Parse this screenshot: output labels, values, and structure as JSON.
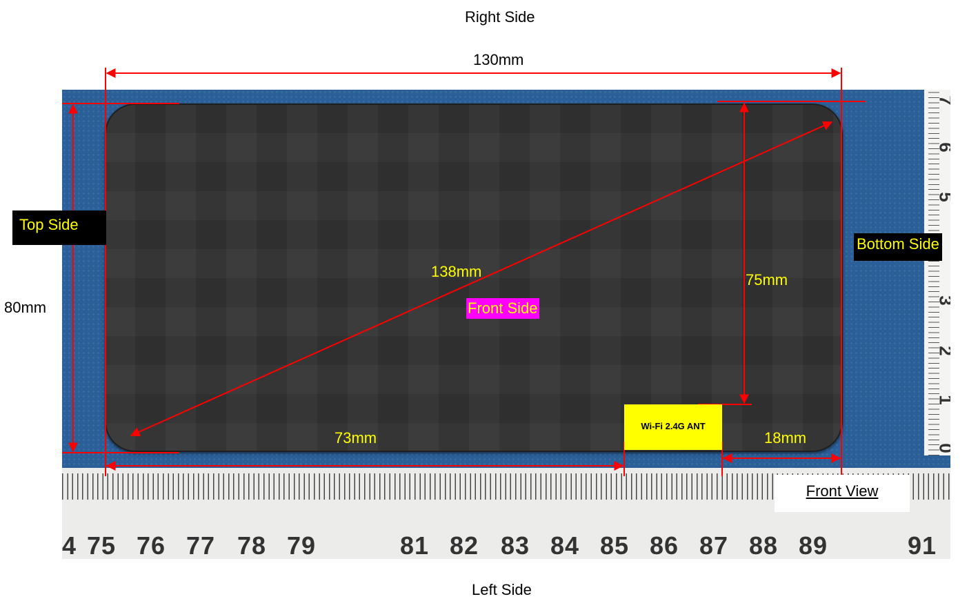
{
  "labels": {
    "right_side": "Right Side",
    "left_side": "Left Side",
    "top_side": "Top Side",
    "bottom_side": "Bottom Side",
    "front_side": "Front Side",
    "front_view": "Front View",
    "wifi_antenna": "Wi-Fi 2.4G ANT"
  },
  "dimensions": {
    "width": "130mm",
    "height": "80mm",
    "diagonal": "138mm",
    "antenna_to_top": "75mm",
    "antenna_from_left": "73mm",
    "antenna_from_right": "18mm"
  },
  "ruler_horizontal": [
    "4",
    "75",
    "76",
    "77",
    "78",
    "79",
    "81",
    "82",
    "83",
    "84",
    "85",
    "86",
    "87",
    "88",
    "89",
    "91"
  ],
  "ruler_vertical": [
    "7",
    "6",
    "5",
    "3",
    "2",
    "1",
    "0"
  ],
  "colors": {
    "dimension_line": "#ff0000",
    "label_text": "#ffff00",
    "front_side_bg": "#ff00ff",
    "background_cloth": "#2a5f97",
    "device": "#333333"
  }
}
